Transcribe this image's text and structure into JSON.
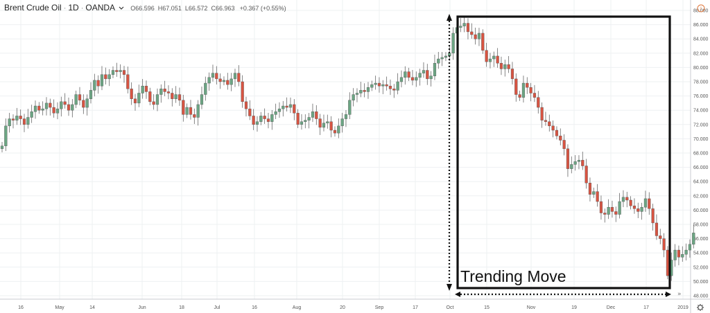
{
  "header": {
    "symbol": "Brent Crude Oil",
    "interval": "1D",
    "source": "OANDA",
    "chevron": "chevron-down-icon",
    "open": "O66.596",
    "high": "H67.051",
    "low": "L66.572",
    "close": "C66.963",
    "change": "+0.367 (+0.55%)"
  },
  "icons": {
    "top_right": "alert-circle-icon",
    "bottom_right": "settings-icon",
    "scroll": "double-chevron-right-icon"
  },
  "colors": {
    "up": "#6ba583",
    "down": "#d75442",
    "annotation": "#111111"
  },
  "annotation": {
    "label": "Trending Move"
  },
  "chart_data": {
    "type": "candlestick",
    "y_axis_position": "right",
    "ylim": [
      48,
      88
    ],
    "y_ticks": [
      "48.000",
      "50.000",
      "52.000",
      "54.000",
      "56.000",
      "58.000",
      "60.000",
      "62.000",
      "64.000",
      "66.000",
      "68.000",
      "70.000",
      "72.000",
      "74.000",
      "76.000",
      "78.000",
      "80.000",
      "82.000",
      "84.000",
      "86.000",
      "88.000"
    ],
    "x_ticks": [
      "16",
      "May",
      "14",
      "Jun",
      "18",
      "Jul",
      "16",
      "Aug",
      "20",
      "Sep",
      "17",
      "Oct",
      "15",
      "Nov",
      "19",
      "Dec",
      "17",
      "2019"
    ],
    "closes": [
      69.0,
      71.8,
      72.8,
      72.6,
      73.2,
      72.8,
      72.0,
      73.0,
      73.8,
      74.6,
      74.0,
      74.2,
      75.0,
      74.4,
      73.6,
      74.2,
      75.2,
      74.8,
      74.0,
      74.8,
      76.2,
      75.4,
      74.4,
      75.6,
      76.8,
      78.2,
      77.4,
      79.0,
      78.4,
      79.0,
      79.6,
      79.4,
      79.6,
      79.0,
      77.0,
      75.6,
      75.0,
      76.4,
      77.4,
      76.6,
      75.2,
      74.8,
      76.2,
      77.0,
      76.6,
      76.4,
      75.6,
      76.2,
      75.4,
      73.4,
      74.4,
      73.4,
      73.0,
      74.8,
      76.2,
      77.8,
      78.6,
      79.2,
      78.4,
      78.0,
      78.2,
      77.6,
      78.4,
      79.2,
      78.0,
      75.2,
      74.2,
      73.2,
      72.0,
      72.4,
      73.2,
      72.8,
      72.4,
      73.4,
      73.8,
      74.2,
      74.6,
      74.4,
      74.8,
      73.6,
      72.0,
      72.4,
      72.6,
      73.0,
      73.8,
      72.8,
      71.6,
      72.2,
      72.4,
      71.2,
      70.8,
      71.8,
      72.8,
      73.4,
      75.4,
      76.2,
      76.4,
      76.8,
      76.6,
      77.2,
      77.6,
      77.8,
      77.4,
      77.6,
      77.4,
      77.0,
      76.8,
      78.0,
      78.6,
      79.4,
      78.6,
      78.2,
      78.6,
      79.2,
      79.6,
      78.4,
      78.8,
      80.6,
      81.2,
      81.4,
      81.6,
      82.0,
      84.8,
      85.6,
      85.8,
      86.2,
      85.0,
      84.6,
      84.0,
      84.8,
      82.4,
      80.8,
      81.2,
      81.6,
      80.6,
      79.8,
      80.4,
      79.8,
      78.4,
      76.2,
      75.8,
      77.8,
      77.2,
      76.4,
      75.8,
      74.4,
      72.6,
      72.4,
      71.8,
      71.2,
      70.4,
      69.8,
      68.6,
      65.8,
      66.4,
      66.8,
      67.0,
      66.2,
      63.8,
      62.2,
      62.6,
      61.2,
      59.6,
      59.4,
      60.4,
      59.8,
      59.4,
      61.2,
      61.8,
      61.4,
      60.6,
      60.2,
      59.8,
      60.4,
      61.6,
      60.2,
      58.2,
      56.4,
      56.0,
      54.4,
      50.8,
      53.0,
      54.4,
      53.4,
      53.8,
      54.4,
      55.2,
      56.8
    ],
    "annotation": {
      "box": {
        "start": "Oct",
        "end": "2019",
        "high": 86.2,
        "low": 50.2
      },
      "label": "Trending Move"
    },
    "xlabel": "",
    "ylabel": ""
  }
}
